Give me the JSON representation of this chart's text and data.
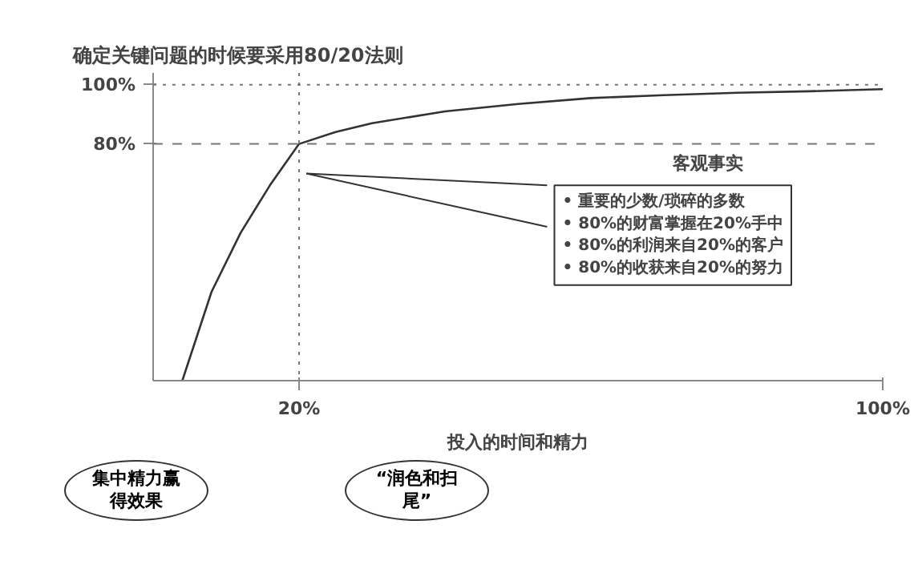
{
  "chart_data": {
    "type": "line",
    "title": "确定关键问题的时候要采用80/20法则",
    "xlabel": "投入的时间和精力",
    "x": [
      4,
      8,
      12,
      16,
      20,
      25,
      30,
      40,
      50,
      60,
      70,
      80,
      90,
      100
    ],
    "series": [
      {
        "color": "#333333",
        "values": [
          0,
          30,
          50,
          66,
          80,
          84,
          87,
          91,
          93.5,
          95.5,
          96.5,
          97.3,
          97.8,
          98.5
        ]
      }
    ],
    "xlim": [
      0,
      100
    ],
    "ylim": [
      0,
      104
    ],
    "xticks": [
      {
        "value": 20,
        "label": "20%"
      },
      {
        "value": 100,
        "label": "100%"
      }
    ],
    "yticks": [
      {
        "value": 80,
        "label": "80%"
      },
      {
        "value": 100,
        "label": "100%"
      }
    ],
    "ref_lines": [
      {
        "axis": "x",
        "value": 20,
        "color": "#777777",
        "line_style": "dotted"
      },
      {
        "axis": "y",
        "value": 80,
        "color": "#777777",
        "line_style": "dashed"
      },
      {
        "axis": "y",
        "value": 100,
        "color": "#777777",
        "line_style": "dotted"
      }
    ],
    "annotations": [
      "客观事实",
      "• 重要的少数/琐碎的多数\n• 80%的财富掌握在20%手中\n• 80%的利润来自20%的客户\n• 80%的收获来自20%的努力",
      "集中精力赢得效果",
      "“润色和扫尾”"
    ],
    "line_style": "solid",
    "marker": "none",
    "grid": false
  }
}
